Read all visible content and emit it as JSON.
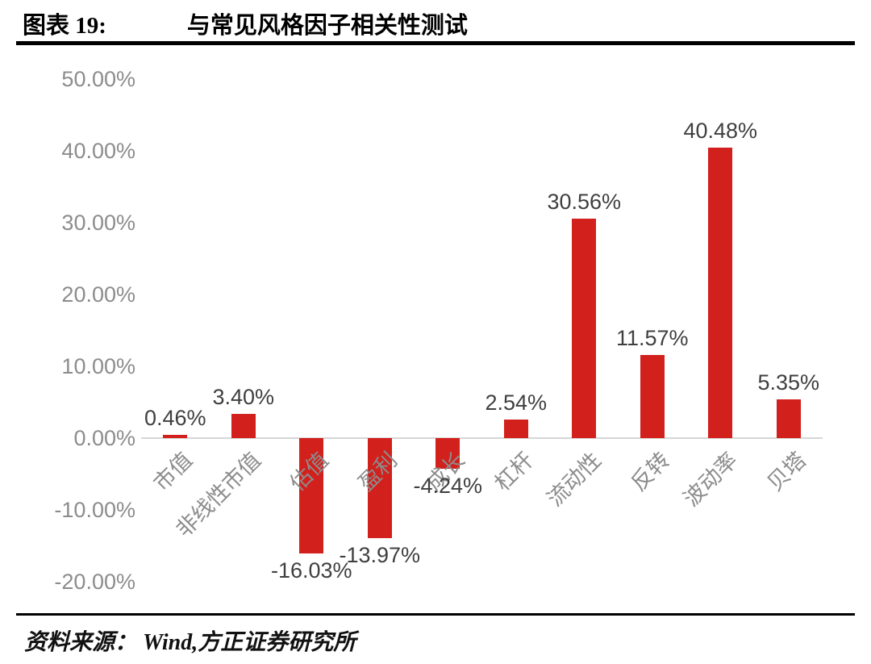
{
  "header": {
    "label": "图表 19:",
    "title": "与常见风格因子相关性测试"
  },
  "footer": {
    "source": "资料来源： Wind,方正证券研究所"
  },
  "chart_data": {
    "type": "bar",
    "title": "与常见风格因子相关性测试",
    "categories": [
      "市值",
      "非线性市值",
      "估值",
      "盈利",
      "成长",
      "杠杆",
      "流动性",
      "反转",
      "波动率",
      "贝塔"
    ],
    "values": [
      0.46,
      3.4,
      -16.03,
      -13.97,
      -4.24,
      2.54,
      30.56,
      11.57,
      40.48,
      5.35
    ],
    "value_labels": [
      "0.46%",
      "3.40%",
      "-16.03%",
      "-13.97%",
      "-4.24%",
      "2.54%",
      "30.56%",
      "11.57%",
      "40.48%",
      "5.35%"
    ],
    "xlabel": "",
    "ylabel": "",
    "ylim": [
      -20,
      50
    ],
    "ytick_step": 10,
    "ytick_labels": [
      "50.00%",
      "40.00%",
      "30.00%",
      "20.00%",
      "10.00%",
      "0.00%",
      "-10.00%",
      "-20.00%"
    ],
    "grid": false,
    "legend": "none",
    "bar_color": "#d2201c",
    "axis_label_color": "#8c8c8c",
    "value_label_color": "#3f3f3f",
    "baseline_color": "#d6d6d6"
  }
}
